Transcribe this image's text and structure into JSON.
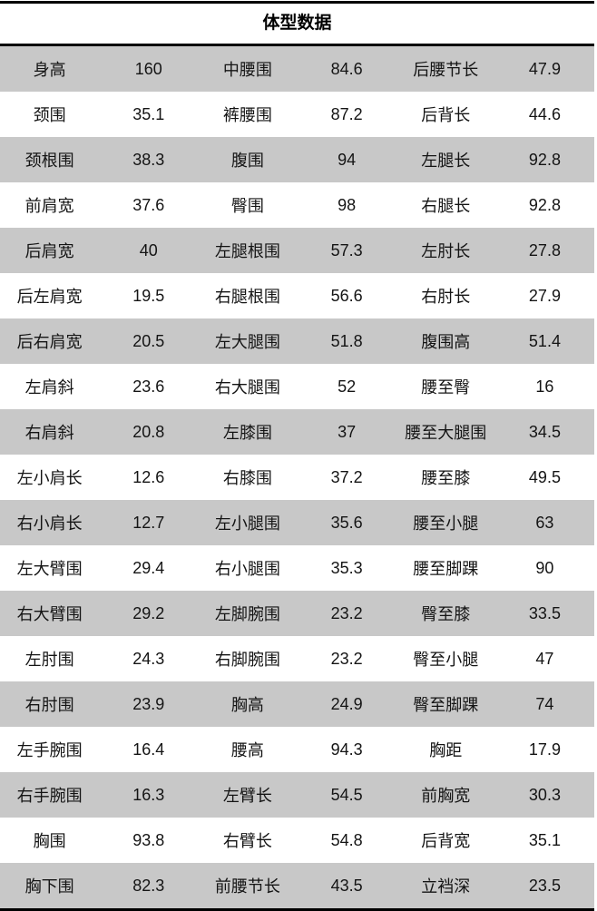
{
  "title": "体型数据",
  "colors": {
    "row_alt": "#c8c8c8",
    "row_base": "#ffffff",
    "border": "#000000",
    "text": "#141414"
  },
  "table": {
    "rows": [
      [
        "身高",
        "160",
        "中腰围",
        "84.6",
        "后腰节长",
        "47.9"
      ],
      [
        "颈围",
        "35.1",
        "裤腰围",
        "87.2",
        "后背长",
        "44.6"
      ],
      [
        "颈根围",
        "38.3",
        "腹围",
        "94",
        "左腿长",
        "92.8"
      ],
      [
        "前肩宽",
        "37.6",
        "臀围",
        "98",
        "右腿长",
        "92.8"
      ],
      [
        "后肩宽",
        "40",
        "左腿根围",
        "57.3",
        "左肘长",
        "27.8"
      ],
      [
        "后左肩宽",
        "19.5",
        "右腿根围",
        "56.6",
        "右肘长",
        "27.9"
      ],
      [
        "后右肩宽",
        "20.5",
        "左大腿围",
        "51.8",
        "腹围高",
        "51.4"
      ],
      [
        "左肩斜",
        "23.6",
        "右大腿围",
        "52",
        "腰至臀",
        "16"
      ],
      [
        "右肩斜",
        "20.8",
        "左膝围",
        "37",
        "腰至大腿围",
        "34.5"
      ],
      [
        "左小肩长",
        "12.6",
        "右膝围",
        "37.2",
        "腰至膝",
        "49.5"
      ],
      [
        "右小肩长",
        "12.7",
        "左小腿围",
        "35.6",
        "腰至小腿",
        "63"
      ],
      [
        "左大臂围",
        "29.4",
        "右小腿围",
        "35.3",
        "腰至脚踝",
        "90"
      ],
      [
        "右大臂围",
        "29.2",
        "左脚腕围",
        "23.2",
        "臀至膝",
        "33.5"
      ],
      [
        "左肘围",
        "24.3",
        "右脚腕围",
        "23.2",
        "臀至小腿",
        "47"
      ],
      [
        "右肘围",
        "23.9",
        "胸高",
        "24.9",
        "臀至脚踝",
        "74"
      ],
      [
        "左手腕围",
        "16.4",
        "腰高",
        "94.3",
        "胸距",
        "17.9"
      ],
      [
        "右手腕围",
        "16.3",
        "左臂长",
        "54.5",
        "前胸宽",
        "30.3"
      ],
      [
        "胸围",
        "93.8",
        "右臂长",
        "54.8",
        "后背宽",
        "35.1"
      ],
      [
        "胸下围",
        "82.3",
        "前腰节长",
        "43.5",
        "立裆深",
        "23.5"
      ]
    ]
  }
}
